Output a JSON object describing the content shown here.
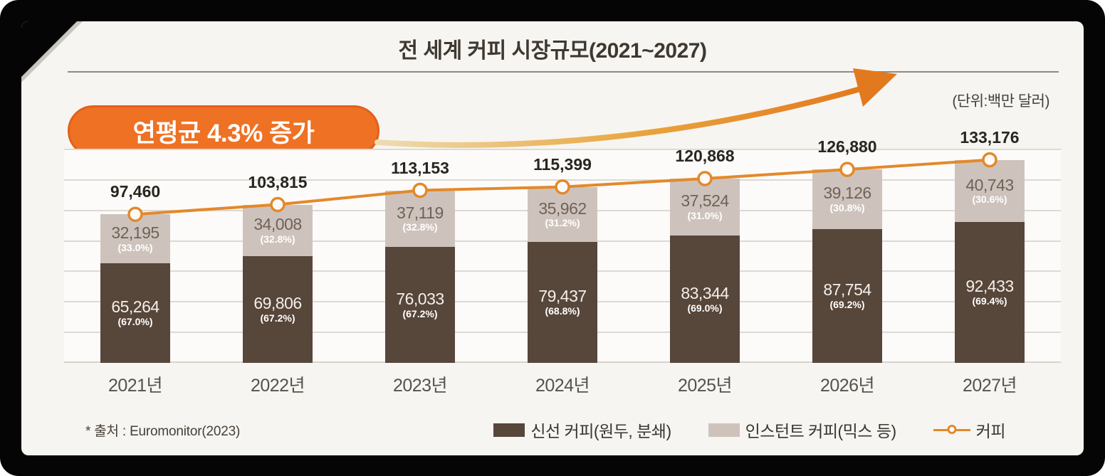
{
  "title": "전 세계 커피 시장규모(2021~2027)",
  "unit_label": "(단위:백만 달러)",
  "badge_label": "연평균 4.3% 증가",
  "source": "* 출처 : Euromonitor(2023)",
  "colors": {
    "fresh_bar": "#57463a",
    "instant_bar": "#cec3bb",
    "line": "#e3892b",
    "badge": "#ee7124",
    "arrow_start": "#eddcb0",
    "arrow_end": "#e2791f"
  },
  "chart_data": {
    "type": "bar",
    "subtype": "stacked-bars-with-total-line",
    "categories": [
      "2021년",
      "2022년",
      "2023년",
      "2024년",
      "2025년",
      "2026년",
      "2027년"
    ],
    "series": [
      {
        "name": "신선 커피(원두, 분쇄)",
        "type": "bar",
        "color": "#57463a",
        "values": [
          65264,
          69806,
          76033,
          79437,
          83344,
          87754,
          92433
        ],
        "percent_labels": [
          "(67.0%)",
          "(67.2%)",
          "(67.2%)",
          "(68.8%)",
          "(69.0%)",
          "(69.2%)",
          "(69.4%)"
        ]
      },
      {
        "name": "인스턴트 커피(믹스 등)",
        "type": "bar",
        "color": "#cec3bb",
        "values": [
          32195,
          34008,
          37119,
          35962,
          37524,
          39126,
          40743
        ],
        "percent_labels": [
          "(33.0%)",
          "(32.8%)",
          "(32.8%)",
          "(31.2%)",
          "(31.0%)",
          "(30.8%)",
          "(30.6%)"
        ]
      },
      {
        "name": "커피",
        "type": "line",
        "color": "#e3892b",
        "values": [
          97460,
          103815,
          113153,
          115399,
          120868,
          126880,
          133176
        ]
      }
    ],
    "ylim": [
      0,
      140000
    ],
    "gridline_step": 20000,
    "grid": true,
    "legend_position": "bottom"
  }
}
